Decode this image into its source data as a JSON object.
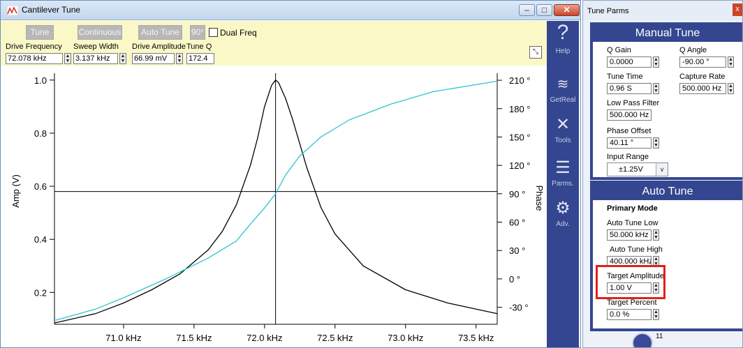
{
  "main_window": {
    "title": "Cantilever Tune",
    "controls": {
      "minimize": "–",
      "maximize": "□",
      "close": "✕"
    }
  },
  "toolbar": {
    "tune_label": "Tune",
    "continuous_label": "Continuous",
    "auto_tune_label": "Auto Tune",
    "phase_90_label": "90°",
    "dual_freq_label": "Dual Freq",
    "params": [
      {
        "label": "Drive Frequency",
        "value": "72.078 kHz"
      },
      {
        "label": "Sweep Width",
        "value": "3.137 kHz"
      },
      {
        "label": "Drive Amplitude",
        "value": "66.99 mV"
      },
      {
        "label": "Tune Q",
        "value": "172.4"
      }
    ]
  },
  "sidebar": {
    "items": [
      {
        "label": "Help",
        "icon": "help-icon"
      },
      {
        "label": "GetReal",
        "icon": "getreal-icon"
      },
      {
        "label": "Tools",
        "icon": "tools-icon"
      },
      {
        "label": "Parms.",
        "icon": "parms-icon"
      },
      {
        "label": "Adv.",
        "icon": "gear-icon"
      }
    ]
  },
  "tune_parms": {
    "title": "Tune Parms",
    "close": "x",
    "manual_tune": {
      "heading": "Manual Tune",
      "q_gain_label": "Q Gain",
      "q_gain_value": "0.0000",
      "q_angle_label": "Q Angle",
      "q_angle_value": "-90.00 °",
      "tune_time_label": "Tune Time",
      "tune_time_value": "0.96 S",
      "capture_rate_label": "Capture Rate",
      "capture_rate_value": "500.000 Hz",
      "low_pass_label": "Low Pass Filter",
      "low_pass_value": "500.000 Hz",
      "phase_offset_label": "Phase Offset",
      "phase_offset_value": "40.11 °",
      "input_range_label": "Input Range",
      "input_range_value": "±1.25V"
    },
    "auto_tune": {
      "heading": "Auto Tune",
      "primary_mode_label": "Primary Mode",
      "low_label": "Auto Tune Low",
      "low_value": "50.000 kHz",
      "high_label": "Auto Tune High",
      "high_value": "400.000 kHz",
      "target_amp_label": "Target Amplitude",
      "target_amp_value": "1.00 V",
      "target_pct_label": "Target Percent",
      "target_pct_value": "0.0 %"
    },
    "badge_text": "11"
  },
  "colors": {
    "accent": "#34468f",
    "toolbar_bg": "#fbf8c8",
    "amplitude_trace": "#000000",
    "phase_trace": "#2ec4cf",
    "highlight": "#e0201b"
  },
  "chart_data": {
    "type": "line",
    "xlabel": "",
    "ylabel": "Amp (V)",
    "y2label": "Phase",
    "x_ticks": [
      "71.0 kHz",
      "71.5 kHz",
      "72.0 kHz",
      "72.5 kHz",
      "73.0 kHz",
      "73.5 kHz"
    ],
    "x_tick_values": [
      71.0,
      71.5,
      72.0,
      72.5,
      73.0,
      73.5
    ],
    "y_ticks": [
      "1.0",
      "0.8",
      "0.6",
      "0.4",
      "0.2"
    ],
    "y_tick_values": [
      1.0,
      0.8,
      0.6,
      0.4,
      0.2
    ],
    "y2_ticks": [
      "210 °",
      "180 °",
      "150 °",
      "120 °",
      "90 °",
      "60 °",
      "30 °",
      "0 °",
      "-30 °"
    ],
    "y2_tick_values": [
      210,
      180,
      150,
      120,
      90,
      60,
      30,
      0,
      -30
    ],
    "xlim": [
      70.51,
      73.65
    ],
    "ylim": [
      0.08,
      1.01
    ],
    "y2lim": [
      -48,
      213
    ],
    "cursor": {
      "x": 72.078,
      "y": 0.58
    },
    "series": [
      {
        "name": "Amplitude",
        "axis": "left",
        "x": [
          70.51,
          70.8,
          71.0,
          71.2,
          71.4,
          71.6,
          71.7,
          71.8,
          71.9,
          71.95,
          72.0,
          72.05,
          72.078,
          72.1,
          72.15,
          72.2,
          72.3,
          72.4,
          72.5,
          72.7,
          73.0,
          73.3,
          73.65
        ],
        "y": [
          0.085,
          0.12,
          0.16,
          0.21,
          0.27,
          0.36,
          0.43,
          0.53,
          0.68,
          0.78,
          0.9,
          0.98,
          1.0,
          0.99,
          0.93,
          0.85,
          0.67,
          0.52,
          0.42,
          0.3,
          0.21,
          0.16,
          0.12
        ]
      },
      {
        "name": "Phase",
        "axis": "right",
        "x": [
          70.51,
          70.8,
          71.0,
          71.3,
          71.6,
          71.8,
          71.9,
          72.0,
          72.078,
          72.15,
          72.25,
          72.4,
          72.6,
          72.9,
          73.2,
          73.65
        ],
        "y": [
          -44,
          -32,
          -20,
          0,
          22,
          40,
          58,
          75,
          90,
          110,
          130,
          150,
          168,
          185,
          198,
          209
        ]
      }
    ]
  }
}
